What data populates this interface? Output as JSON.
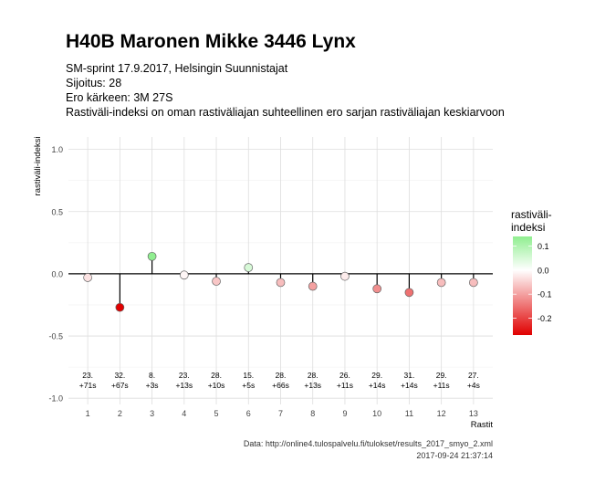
{
  "title": "H40B Maronen Mikke 3446 Lynx",
  "subtitle_lines": [
    "SM-sprint 17.9.2017, Helsingin Suunnistajat",
    "Sijoitus: 28",
    "Ero kärkeen: 3M 27S",
    "Rastiväli-indeksi on oman rastiväliajan suhteellinen ero sarjan rastiväliajan keskiarvoon"
  ],
  "caption_lines": [
    "Data: http://online4.tulospalvelu.fi/tulokset/results_2017_smyo_2.xml",
    "2017-09-24 21:37:14"
  ],
  "chart_data": {
    "type": "lollipop",
    "xlabel": "Rastit",
    "ylabel": "rastiväli-indeksi",
    "x": [
      1,
      2,
      3,
      4,
      5,
      6,
      7,
      8,
      9,
      10,
      11,
      12,
      13
    ],
    "values": [
      -0.03,
      -0.27,
      0.14,
      -0.01,
      -0.06,
      0.05,
      -0.07,
      -0.1,
      -0.02,
      -0.12,
      -0.15,
      -0.07,
      -0.07
    ],
    "annotations": [
      [
        "23.",
        "+71s"
      ],
      [
        "32.",
        "+67s"
      ],
      [
        "8.",
        "+3s"
      ],
      [
        "23.",
        "+13s"
      ],
      [
        "28.",
        "+10s"
      ],
      [
        "15.",
        "+5s"
      ],
      [
        "28.",
        "+66s"
      ],
      [
        "28.",
        "+13s"
      ],
      [
        "26.",
        "+11s"
      ],
      [
        "29.",
        "+14s"
      ],
      [
        "31.",
        "+14s"
      ],
      [
        "29.",
        "+11s"
      ],
      [
        "27.",
        "+4s"
      ]
    ],
    "ylim": [
      -1.05,
      1.1
    ],
    "xlim": [
      0.4,
      13.6
    ],
    "yticks": [
      1.0,
      0.5,
      0.0,
      -0.5,
      -1.0
    ],
    "ytick_labels": [
      "1.0",
      "0.5",
      "0.0",
      "-0.5",
      "-1.0"
    ],
    "xtick_labels": [
      "1",
      "2",
      "3",
      "4",
      "5",
      "6",
      "7",
      "8",
      "9",
      "10",
      "11",
      "12",
      "13"
    ],
    "grid": true,
    "legend": {
      "title_lines": [
        "rastiväli-",
        "indeksi"
      ],
      "position": "right",
      "ticks": [
        0.1,
        0.0,
        -0.1,
        -0.2
      ],
      "tick_labels": [
        "0.1",
        "0.0",
        "-0.1",
        "-0.2"
      ],
      "range": [
        -0.27,
        0.14
      ]
    },
    "colors": {
      "high": "#90ee90",
      "mid": "#ffffff",
      "low": "#e00000"
    }
  }
}
